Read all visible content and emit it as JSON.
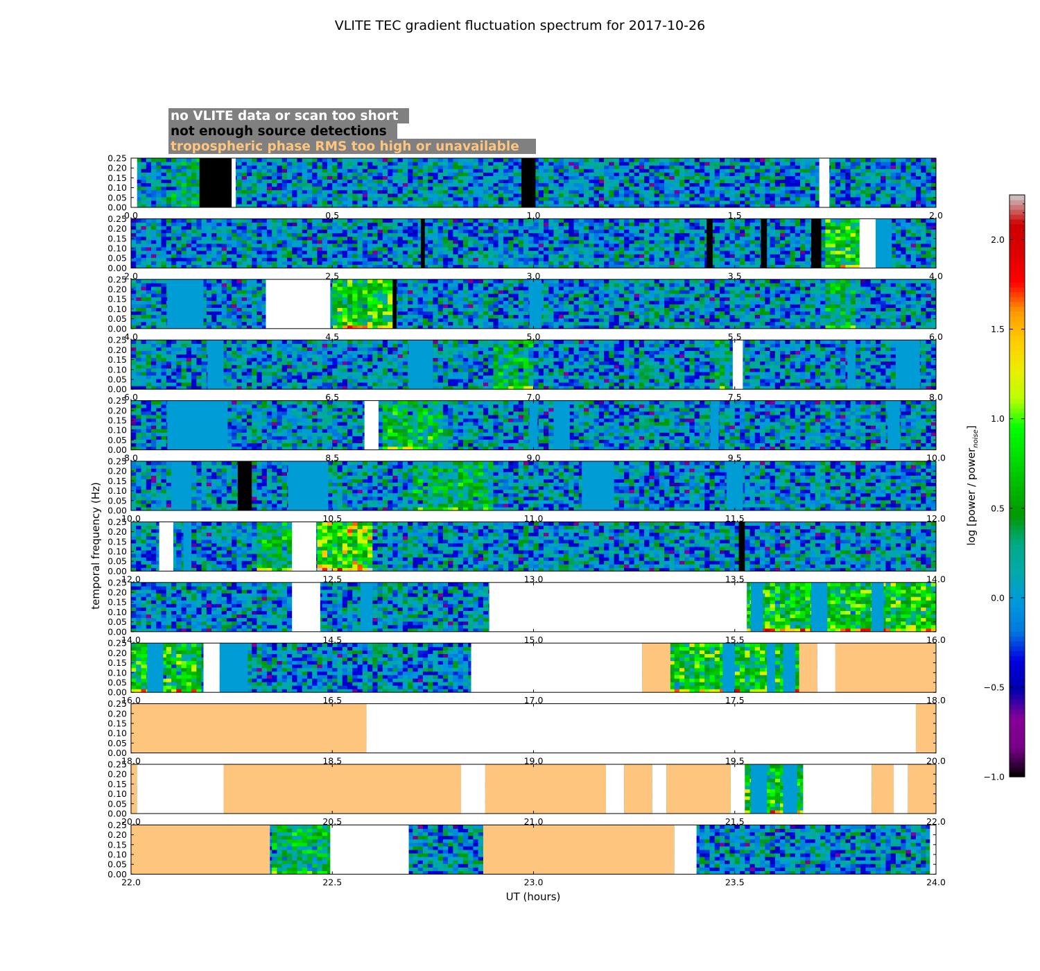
{
  "chart_data": {
    "type": "heatmap",
    "title": "VLITE TEC gradient fluctuation spectrum for 2017-10-26",
    "xlabel": "UT (hours)",
    "ylabel": "temporal frequency (Hz)",
    "ylim": [
      0,
      0.25
    ],
    "yticks": [
      "0.00",
      "0.05",
      "0.10",
      "0.15",
      "0.20",
      "0.25"
    ],
    "legend": {
      "position": "top-left",
      "items": [
        {
          "label": "no VLITE data or scan too short",
          "text_color": "#ffffff",
          "flag": "white"
        },
        {
          "label": "not enough source detections",
          "text_color": "#000000",
          "flag": "black"
        },
        {
          "label": "tropospheric phase RMS too high or unavailable",
          "text_color": "#fec57e",
          "flag": "orange"
        }
      ]
    },
    "flag_colors": {
      "white": "#ffffff",
      "black": "#000000",
      "orange": "#fec57e"
    },
    "colorbar": {
      "label": "log [power / power_noise]",
      "range": [
        -1.0,
        2.25
      ],
      "ticks": [
        "−1.0",
        "−0.5",
        "0.0",
        "0.5",
        "1.0",
        "1.5",
        "2.0"
      ],
      "tick_values": [
        -1.0,
        -0.5,
        0.0,
        0.5,
        1.0,
        1.5,
        2.0
      ],
      "colormap": "nipy_spectral"
    },
    "rows": [
      {
        "range": [
          0.0,
          2.0
        ],
        "xticks": [
          "0.0",
          "0.5",
          "1.0",
          "1.5",
          "2.0"
        ],
        "flags": [
          [
            0.0,
            0.015,
            "white"
          ],
          [
            0.17,
            0.25,
            "black"
          ],
          [
            0.25,
            0.26,
            "white"
          ],
          [
            0.97,
            1.005,
            "black"
          ],
          [
            1.71,
            1.735,
            "white"
          ]
        ],
        "uniform": [],
        "hot": [
          [
            0.1,
            0.17,
            0.25
          ]
        ]
      },
      {
        "range": [
          2.0,
          4.0
        ],
        "xticks": [
          "2.0",
          "2.5",
          "3.0",
          "3.5",
          "4.0"
        ],
        "flags": [
          [
            2.72,
            2.73,
            "black"
          ],
          [
            3.43,
            3.445,
            "black"
          ],
          [
            3.565,
            3.58,
            "black"
          ],
          [
            3.69,
            3.715,
            "black"
          ],
          [
            3.81,
            3.85,
            "white"
          ]
        ],
        "uniform": [
          [
            3.85,
            3.89
          ]
        ],
        "hot": [
          [
            3.72,
            3.82,
            0.55
          ]
        ]
      },
      {
        "range": [
          4.0,
          6.0
        ],
        "xticks": [
          "4.0",
          "4.5",
          "5.0",
          "5.5",
          "6.0"
        ],
        "flags": [
          [
            4.335,
            4.495,
            "white"
          ],
          [
            4.65,
            4.66,
            "black"
          ]
        ],
        "uniform": [
          [
            4.09,
            4.18
          ],
          [
            4.99,
            5.02
          ]
        ],
        "hot": [
          [
            4.5,
            4.65,
            0.6
          ],
          [
            5.73,
            5.8,
            0.35
          ]
        ]
      },
      {
        "range": [
          6.0,
          8.0
        ],
        "xticks": [
          "6.0",
          "6.5",
          "7.0",
          "7.5",
          "8.0"
        ],
        "flags": [
          [
            7.495,
            7.52,
            "white"
          ]
        ],
        "uniform": [
          [
            6.19,
            6.23
          ],
          [
            6.69,
            6.75
          ],
          [
            7.78,
            7.8
          ],
          [
            7.9,
            7.96
          ]
        ],
        "hot": [
          [
            6.9,
            7.0,
            0.35
          ],
          [
            7.45,
            7.49,
            0.3
          ]
        ]
      },
      {
        "range": [
          8.0,
          10.0
        ],
        "xticks": [
          "8.0",
          "8.5",
          "9.0",
          "9.5",
          "10.0"
        ],
        "flags": [
          [
            8.58,
            8.615,
            "white"
          ]
        ],
        "uniform": [
          [
            8.09,
            8.24
          ],
          [
            8.99,
            9.01
          ],
          [
            9.05,
            9.09
          ],
          [
            9.44,
            9.46
          ],
          [
            9.88,
            9.91
          ]
        ],
        "hot": [
          [
            8.62,
            8.77,
            0.45
          ]
        ]
      },
      {
        "range": [
          10.0,
          12.0
        ],
        "xticks": [
          "10.0",
          "10.5",
          "11.0",
          "11.5",
          "12.0"
        ],
        "flags": [
          [
            10.265,
            10.3,
            "black"
          ]
        ],
        "uniform": [
          [
            10.1,
            10.15
          ],
          [
            10.39,
            10.49
          ],
          [
            11.12,
            11.2
          ],
          [
            11.48,
            11.52
          ]
        ],
        "hot": [
          [
            10.7,
            10.9,
            0.35
          ]
        ]
      },
      {
        "range": [
          12.0,
          14.0
        ],
        "xticks": [
          "12.0",
          "12.5",
          "13.0",
          "13.5",
          "14.0"
        ],
        "flags": [
          [
            12.07,
            12.105,
            "white"
          ],
          [
            12.4,
            12.46,
            "white"
          ],
          [
            13.51,
            13.525,
            "black"
          ]
        ],
        "uniform": [
          [
            12.13,
            12.15
          ]
        ],
        "hot": [
          [
            12.31,
            12.4,
            0.45
          ],
          [
            12.46,
            12.6,
            0.85
          ]
        ]
      },
      {
        "range": [
          14.0,
          16.0
        ],
        "xticks": [
          "14.0",
          "14.5",
          "15.0",
          "15.5",
          "16.0"
        ],
        "flags": [
          [
            14.4,
            14.47,
            "white"
          ],
          [
            14.89,
            15.53,
            "white"
          ]
        ],
        "uniform": [
          [
            14.57,
            14.6
          ],
          [
            15.54,
            15.57
          ],
          [
            15.69,
            15.73
          ],
          [
            15.84,
            15.87
          ]
        ],
        "hot": [
          [
            15.53,
            16.0,
            0.6
          ]
        ]
      },
      {
        "range": [
          16.0,
          18.0
        ],
        "xticks": [
          "16.0",
          "16.5",
          "17.0",
          "17.5",
          "18.0"
        ],
        "flags": [
          [
            16.18,
            16.22,
            "white"
          ],
          [
            16.845,
            17.27,
            "white"
          ],
          [
            17.27,
            17.34,
            "orange"
          ],
          [
            17.66,
            17.705,
            "orange"
          ],
          [
            17.705,
            17.75,
            "white"
          ],
          [
            17.75,
            18.0,
            "orange"
          ]
        ],
        "uniform": [
          [
            16.04,
            16.08
          ],
          [
            16.22,
            16.29
          ],
          [
            17.47,
            17.5
          ],
          [
            17.58,
            17.6
          ],
          [
            17.62,
            17.65
          ]
        ],
        "hot": [
          [
            16.0,
            16.18,
            0.55
          ],
          [
            17.34,
            17.66,
            0.6
          ]
        ]
      },
      {
        "range": [
          18.0,
          20.0
        ],
        "xticks": [
          "18.0",
          "18.5",
          "19.0",
          "19.5",
          "20.0"
        ],
        "flags": [
          [
            18.0,
            18.585,
            "orange"
          ],
          [
            18.585,
            19.95,
            "white"
          ],
          [
            19.95,
            20.0,
            "orange"
          ]
        ],
        "uniform": [],
        "hot": []
      },
      {
        "range": [
          20.0,
          22.0
        ],
        "xticks": [
          "20.0",
          "20.5",
          "21.0",
          "21.5",
          "22.0"
        ],
        "flags": [
          [
            20.0,
            20.015,
            "orange"
          ],
          [
            20.015,
            20.23,
            "white"
          ],
          [
            20.23,
            20.82,
            "orange"
          ],
          [
            20.82,
            20.88,
            "white"
          ],
          [
            20.88,
            21.18,
            "orange"
          ],
          [
            21.18,
            21.225,
            "white"
          ],
          [
            21.225,
            21.295,
            "orange"
          ],
          [
            21.295,
            21.33,
            "white"
          ],
          [
            21.33,
            21.49,
            "orange"
          ],
          [
            21.49,
            21.525,
            "white"
          ],
          [
            21.67,
            21.84,
            "white"
          ],
          [
            21.84,
            21.895,
            "orange"
          ],
          [
            21.895,
            21.93,
            "white"
          ],
          [
            21.93,
            22.0,
            "orange"
          ]
        ],
        "uniform": [
          [
            21.54,
            21.58
          ],
          [
            21.62,
            21.655
          ]
        ],
        "hot": [
          [
            21.525,
            21.67,
            0.6
          ]
        ]
      },
      {
        "range": [
          22.0,
          24.0
        ],
        "xticks": [
          "22.0",
          "22.5",
          "23.0",
          "23.5",
          "24.0"
        ],
        "flags": [
          [
            22.0,
            22.345,
            "orange"
          ],
          [
            22.495,
            22.69,
            "white"
          ],
          [
            22.875,
            23.35,
            "orange"
          ],
          [
            23.35,
            23.405,
            "white"
          ],
          [
            23.985,
            24.0,
            "white"
          ]
        ],
        "uniform": [],
        "hot": [
          [
            22.345,
            22.5,
            0.35
          ]
        ]
      }
    ]
  }
}
